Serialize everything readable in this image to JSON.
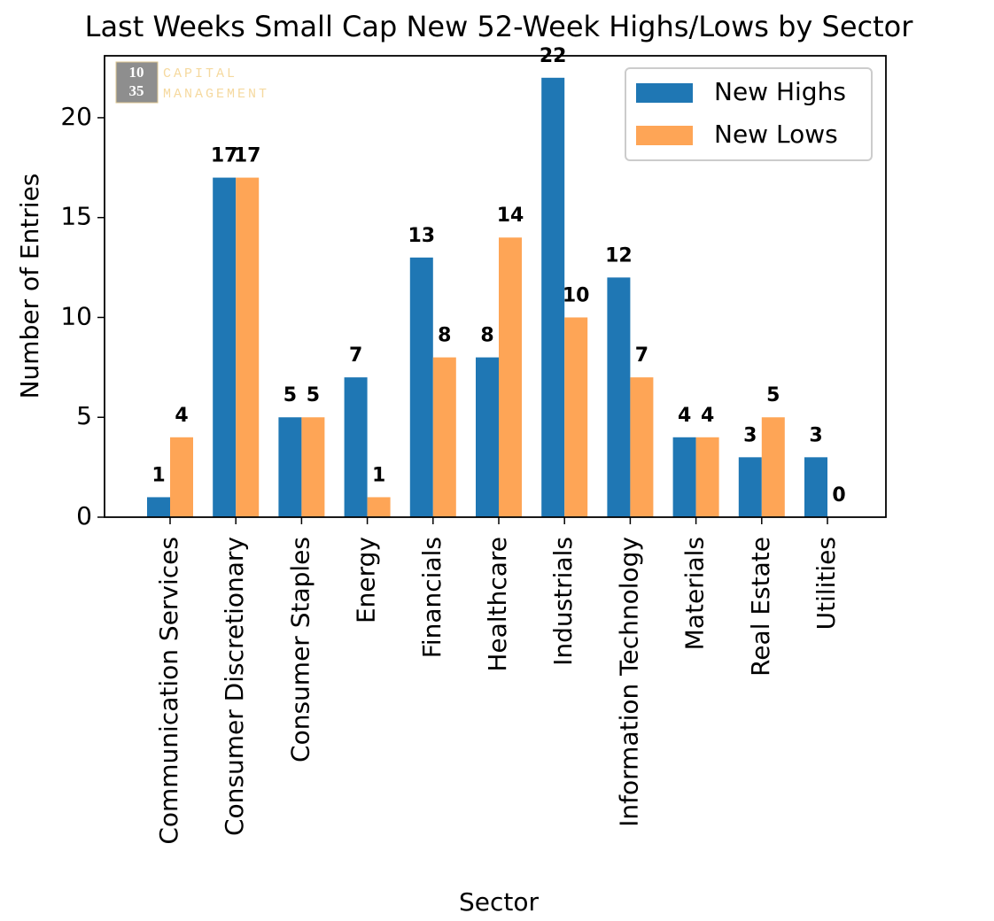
{
  "chart_data": {
    "type": "bar",
    "title": "Last Weeks Small Cap New 52-Week Highs/Lows by Sector",
    "x_label": "Sector",
    "y_label": "Number of Entries",
    "logo": {
      "top": "10",
      "bottom": "35",
      "line1": "CAPITAL",
      "line2": "MANAGEMENT"
    },
    "categories": [
      "Communication Services",
      "Consumer Discretionary",
      "Consumer Staples",
      "Energy",
      "Financials",
      "Healthcare",
      "Industrials",
      "Information Technology",
      "Materials",
      "Real Estate",
      "Utilities"
    ],
    "series": [
      {
        "name": "New Highs",
        "color": "#1f77b4",
        "values": [
          1,
          17,
          5,
          7,
          13,
          8,
          22,
          12,
          4,
          3,
          3
        ]
      },
      {
        "name": "New Lows",
        "color": "#fea556",
        "values": [
          4,
          17,
          5,
          1,
          8,
          14,
          10,
          7,
          4,
          5,
          0
        ]
      }
    ],
    "ylim": [
      0,
      23.1
    ],
    "yticks": [
      0,
      5,
      10,
      15,
      20
    ],
    "legend": "upper right"
  }
}
